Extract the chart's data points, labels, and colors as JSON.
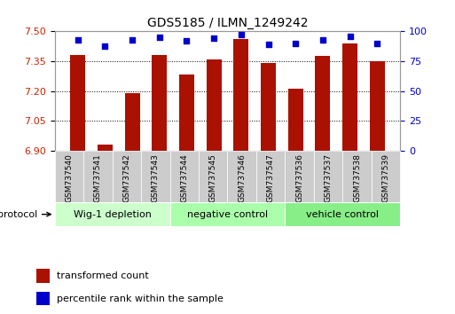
{
  "title": "GDS5185 / ILMN_1249242",
  "samples": [
    "GSM737540",
    "GSM737541",
    "GSM737542",
    "GSM737543",
    "GSM737544",
    "GSM737545",
    "GSM737546",
    "GSM737547",
    "GSM737536",
    "GSM737537",
    "GSM737538",
    "GSM737539"
  ],
  "bar_values": [
    7.38,
    6.93,
    7.19,
    7.38,
    7.285,
    7.36,
    7.46,
    7.34,
    7.21,
    7.375,
    7.44,
    7.35
  ],
  "percentile_values": [
    93,
    88,
    93,
    95,
    92,
    94,
    97,
    89,
    90,
    93,
    96,
    90
  ],
  "ylim_left": [
    6.9,
    7.5
  ],
  "yticks_left": [
    6.9,
    7.05,
    7.2,
    7.35,
    7.5
  ],
  "ylim_right": [
    0,
    100
  ],
  "yticks_right": [
    0,
    25,
    50,
    75,
    100
  ],
  "bar_color": "#aa1100",
  "dot_color": "#0000cc",
  "groups": [
    {
      "label": "Wig-1 depletion",
      "start": 0,
      "end": 4,
      "color": "#ccffcc"
    },
    {
      "label": "negative control",
      "start": 4,
      "end": 8,
      "color": "#aaffaa"
    },
    {
      "label": "vehicle control",
      "start": 8,
      "end": 12,
      "color": "#88ee88"
    }
  ],
  "protocol_label": "protocol",
  "legend_bar_label": "transformed count",
  "legend_dot_label": "percentile rank within the sample",
  "background_color": "#ffffff",
  "plot_bg_color": "#ffffff",
  "grid_color": "#000000",
  "tick_label_color_left": "#cc2200",
  "tick_label_color_right": "#0000cc",
  "xlabel_bg": "#cccccc"
}
